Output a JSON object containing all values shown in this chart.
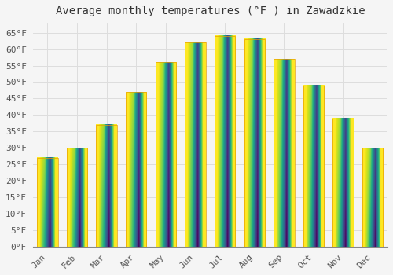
{
  "title": "Average monthly temperatures (°F ) in Zawadzkie",
  "months": [
    "Jan",
    "Feb",
    "Mar",
    "Apr",
    "May",
    "Jun",
    "Jul",
    "Aug",
    "Sep",
    "Oct",
    "Nov",
    "Dec"
  ],
  "values": [
    27,
    30,
    37,
    47,
    56,
    62,
    64,
    63,
    57,
    49,
    39,
    30
  ],
  "bar_color_top": "#FFC200",
  "bar_color_bottom": "#FF9900",
  "bar_edge_color": "#E8A000",
  "background_color": "#f5f5f5",
  "grid_color": "#dddddd",
  "ylim": [
    0,
    68
  ],
  "yticks": [
    0,
    5,
    10,
    15,
    20,
    25,
    30,
    35,
    40,
    45,
    50,
    55,
    60,
    65
  ],
  "title_fontsize": 10,
  "tick_fontsize": 8,
  "font_family": "monospace"
}
